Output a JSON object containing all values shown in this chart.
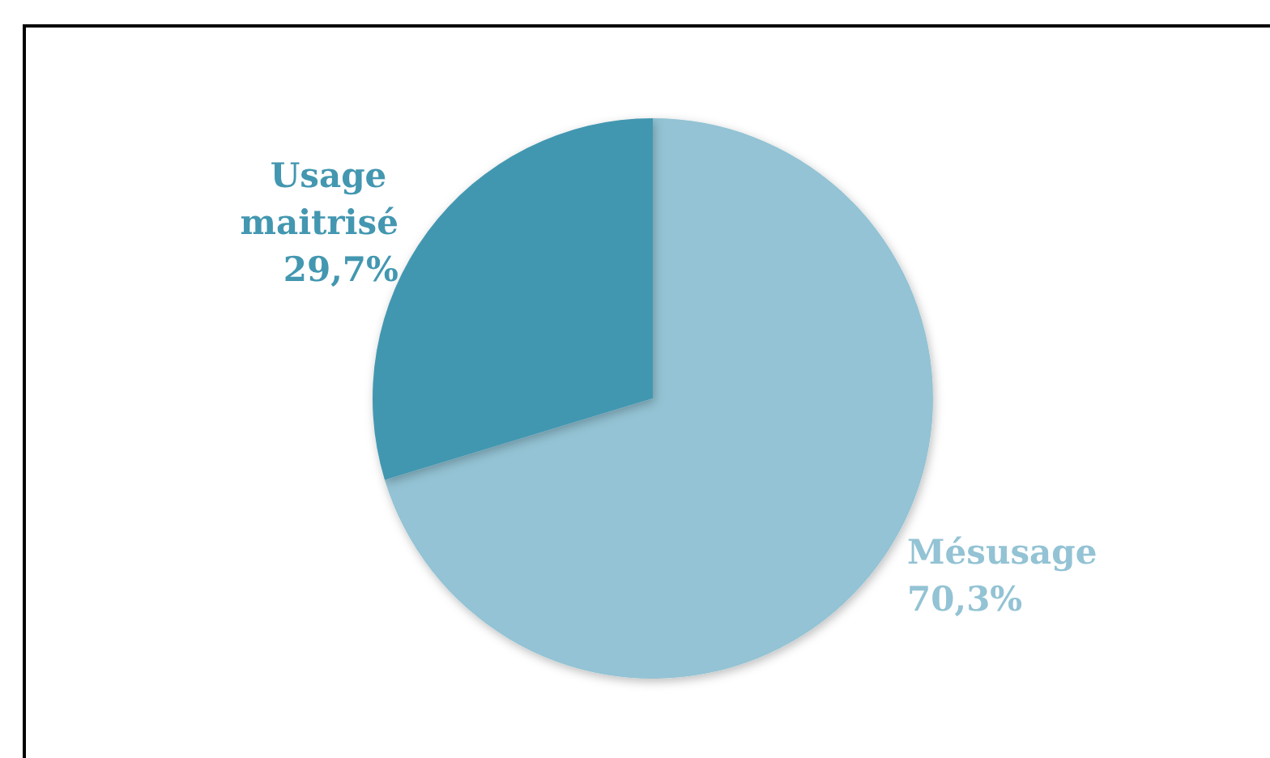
{
  "chart_data": {
    "type": "pie",
    "categories": [
      "Mésusage",
      "Usage maitrisé"
    ],
    "values": [
      70.3,
      29.7
    ],
    "colors": [
      "#93c3d4",
      "#4397b0"
    ],
    "value_labels": [
      "70,3%",
      "29,7%"
    ],
    "legend": false
  }
}
